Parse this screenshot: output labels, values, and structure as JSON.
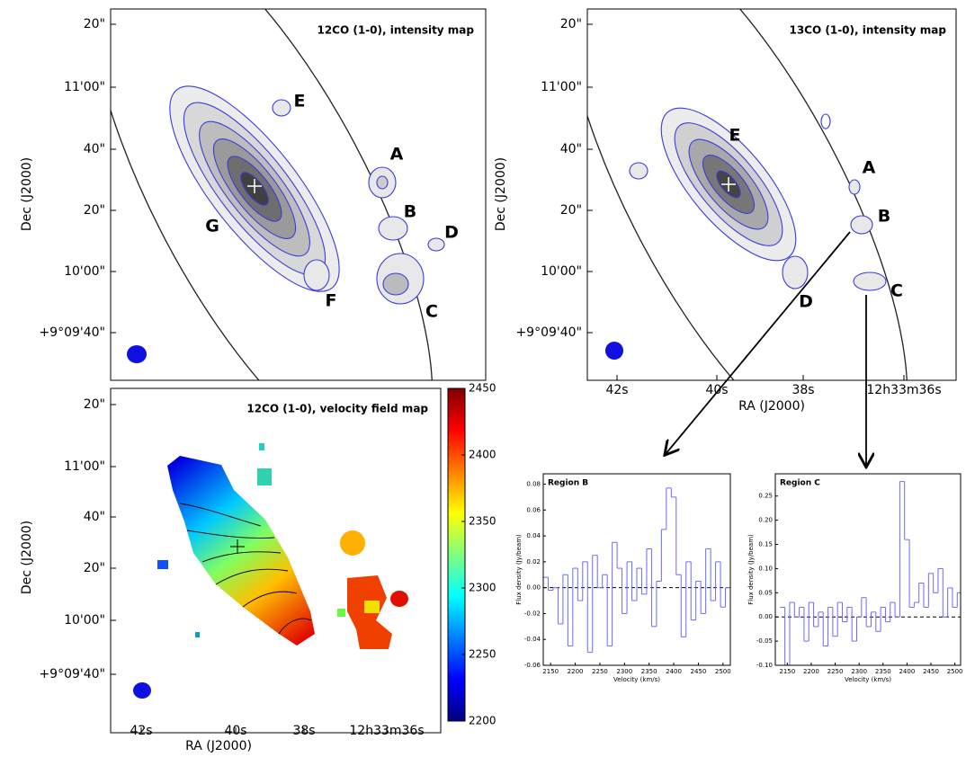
{
  "chart_data": [
    {
      "type": "map",
      "title": "12CO (1-0), intensity map",
      "ylabel": "Dec (J2000)",
      "ytick_labels": [
        "20\"",
        "11'00\"",
        "40\"",
        "20\"",
        "10'00\"",
        "+9°09'40\""
      ],
      "region_labels": [
        "E",
        "A",
        "G",
        "B",
        "D",
        "F",
        "C"
      ]
    },
    {
      "type": "map",
      "title": "13CO (1-0), intensity map",
      "ylabel": "Dec (J2000)",
      "xlabel": "RA (J2000)",
      "ytick_labels": [
        "20\"",
        "11'00\"",
        "40\"",
        "20\"",
        "10'00\"",
        "+9°09'40\""
      ],
      "xtick_labels": [
        "42s",
        "40s",
        "38s",
        "12h33m36s"
      ],
      "region_labels": [
        "E",
        "A",
        "B",
        "D",
        "C"
      ]
    },
    {
      "type": "map",
      "title": "12CO (1-0), velocity field map",
      "ylabel": "Dec (J2000)",
      "xlabel": "RA (J2000)",
      "ytick_labels": [
        "20\"",
        "11'00\"",
        "40\"",
        "20\"",
        "10'00\"",
        "+9°09'40\""
      ],
      "xtick_labels": [
        "42s",
        "40s",
        "38s",
        "12h33m36s"
      ],
      "colorbar": {
        "clim": [
          2200,
          2450
        ],
        "ticks": [
          2200,
          2250,
          2300,
          2350,
          2400,
          2450
        ]
      }
    },
    {
      "type": "step",
      "title": "Region B",
      "xlabel": "Velocity (km/s)",
      "ylabel": "Flux density (Jy/beam)",
      "color": "#6b6bff",
      "x": [
        2140,
        2150,
        2160,
        2170,
        2180,
        2190,
        2200,
        2210,
        2220,
        2230,
        2240,
        2250,
        2260,
        2270,
        2280,
        2290,
        2300,
        2310,
        2320,
        2330,
        2340,
        2350,
        2360,
        2370,
        2380,
        2390,
        2400,
        2410,
        2420,
        2430,
        2440,
        2450,
        2460,
        2470,
        2480,
        2490,
        2500,
        2510
      ],
      "values": [
        0.008,
        -0.002,
        0.0,
        -0.028,
        0.01,
        -0.045,
        0.015,
        -0.01,
        0.02,
        -0.05,
        0.025,
        0.0,
        0.01,
        -0.045,
        0.035,
        0.015,
        -0.02,
        0.02,
        -0.01,
        0.015,
        -0.005,
        0.03,
        -0.03,
        0.005,
        0.045,
        0.077,
        0.07,
        0.01,
        -0.038,
        0.02,
        -0.025,
        0.005,
        -0.02,
        0.03,
        -0.01,
        0.02,
        -0.015,
        0.0
      ],
      "xlim": [
        2135,
        2515
      ],
      "ylim": [
        -0.06,
        0.088
      ],
      "xticks": [
        2150,
        2200,
        2250,
        2300,
        2350,
        2400,
        2450,
        2500
      ],
      "yticks": [
        -0.06,
        -0.04,
        -0.02,
        {
          "value": 0,
          "label": "0.00"
        },
        0.02,
        0.04,
        0.06,
        0.08
      ],
      "zero_line": true
    },
    {
      "type": "step",
      "title": "Region C",
      "xlabel": "Velocity (km/s)",
      "ylabel": "Flux density (Jy/beam)",
      "color": "#6b6bff",
      "x": [
        2140,
        2150,
        2160,
        2170,
        2180,
        2190,
        2200,
        2210,
        2220,
        2230,
        2240,
        2250,
        2260,
        2270,
        2280,
        2290,
        2300,
        2310,
        2320,
        2330,
        2340,
        2350,
        2360,
        2370,
        2380,
        2390,
        2400,
        2410,
        2420,
        2430,
        2440,
        2450,
        2460,
        2470,
        2480,
        2490,
        2500,
        2510
      ],
      "values": [
        0.02,
        -0.1,
        0.03,
        0.0,
        0.02,
        -0.05,
        0.03,
        -0.02,
        0.01,
        -0.06,
        0.02,
        -0.04,
        0.03,
        -0.01,
        0.02,
        -0.05,
        0.0,
        0.04,
        -0.02,
        0.01,
        -0.03,
        0.02,
        -0.01,
        0.03,
        0.0,
        0.28,
        0.16,
        0.02,
        0.03,
        0.07,
        0.02,
        0.09,
        0.05,
        0.1,
        0.0,
        0.06,
        0.02,
        0.05
      ],
      "xlim": [
        2125,
        2512
      ],
      "ylim": [
        -0.1,
        0.296
      ],
      "xticks": [
        2150,
        2200,
        2250,
        2300,
        2350,
        2400,
        2450,
        2500
      ],
      "yticks": [
        {
          "value": -0.1,
          "label": "-0.10"
        },
        -0.05,
        {
          "value": 0,
          "label": "0.00"
        },
        0.05,
        {
          "value": 0.1,
          "label": "0.10"
        },
        0.15,
        {
          "value": 0.2,
          "label": "0.20"
        },
        0.25
      ],
      "zero_line": true
    }
  ]
}
